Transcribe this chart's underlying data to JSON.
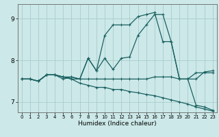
{
  "title": "",
  "xlabel": "Humidex (Indice chaleur)",
  "bg_color": "#cce8e8",
  "grid_color": "#aacccc",
  "line_color": "#1a6060",
  "ylim": [
    6.75,
    9.35
  ],
  "xlim": [
    -0.5,
    23.5
  ],
  "yticks": [
    7,
    8,
    9
  ],
  "xticks": [
    0,
    1,
    2,
    3,
    4,
    5,
    6,
    7,
    8,
    9,
    10,
    11,
    12,
    13,
    14,
    15,
    16,
    17,
    18,
    19,
    20,
    21,
    22,
    23
  ],
  "lines": [
    {
      "x": [
        0,
        1,
        2,
        3,
        4,
        5,
        6,
        7,
        8,
        9,
        10,
        11,
        12,
        13,
        14,
        15,
        16,
        17,
        18,
        19,
        20,
        21,
        22,
        23
      ],
      "y": [
        7.55,
        7.55,
        7.5,
        7.65,
        7.65,
        7.6,
        7.6,
        7.55,
        8.05,
        7.75,
        8.6,
        8.85,
        8.85,
        8.85,
        9.05,
        9.1,
        9.15,
        8.45,
        8.45,
        7.55,
        7.55,
        6.92,
        6.88,
        6.8
      ]
    },
    {
      "x": [
        0,
        1,
        2,
        3,
        4,
        5,
        6,
        7,
        8,
        9,
        10,
        11,
        12,
        13,
        14,
        15,
        16,
        17,
        18,
        19,
        20,
        21,
        22,
        23
      ],
      "y": [
        7.55,
        7.55,
        7.5,
        7.65,
        7.65,
        7.55,
        7.6,
        7.55,
        7.55,
        7.55,
        7.55,
        7.55,
        7.55,
        7.55,
        7.55,
        7.55,
        7.6,
        7.6,
        7.6,
        7.55,
        7.55,
        7.55,
        7.72,
        7.75
      ]
    },
    {
      "x": [
        0,
        1,
        2,
        3,
        4,
        5,
        6,
        7,
        8,
        9,
        10,
        11,
        12,
        13,
        14,
        15,
        16,
        17,
        18,
        19,
        20,
        21,
        22,
        23
      ],
      "y": [
        7.55,
        7.55,
        7.5,
        7.65,
        7.65,
        7.6,
        7.55,
        7.45,
        7.4,
        7.35,
        7.35,
        7.3,
        7.3,
        7.25,
        7.22,
        7.18,
        7.15,
        7.1,
        7.05,
        7.0,
        6.95,
        6.88,
        6.83,
        6.78
      ]
    },
    {
      "x": [
        0,
        1,
        2,
        3,
        4,
        5,
        6,
        7,
        8,
        9,
        10,
        11,
        12,
        13,
        14,
        15,
        16,
        17,
        18,
        19,
        20,
        21,
        22,
        23
      ],
      "y": [
        7.55,
        7.55,
        7.5,
        7.65,
        7.65,
        7.6,
        7.55,
        7.55,
        8.05,
        7.75,
        8.05,
        7.78,
        8.05,
        8.08,
        8.6,
        8.85,
        9.1,
        9.1,
        8.45,
        7.55,
        7.55,
        7.7,
        7.7,
        7.7
      ]
    }
  ]
}
